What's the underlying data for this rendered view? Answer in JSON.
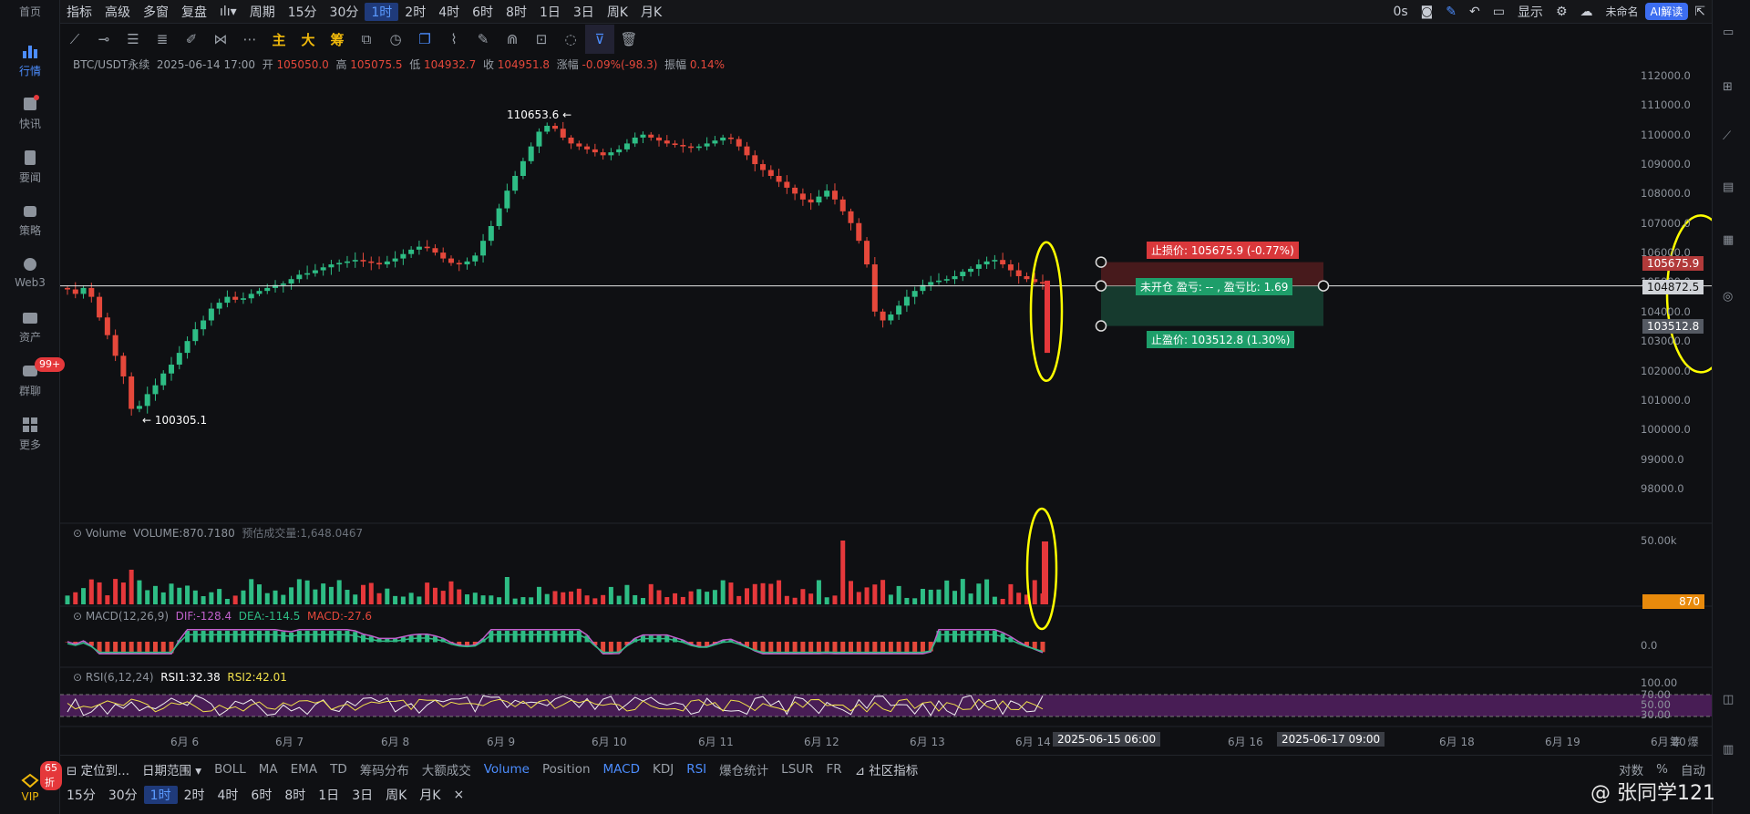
{
  "leftnav": {
    "items": [
      {
        "label": "首页"
      },
      {
        "label": "行情"
      },
      {
        "label": "快讯"
      },
      {
        "label": "要闻"
      },
      {
        "label": "策略"
      },
      {
        "label": "Web3"
      },
      {
        "label": "资产"
      },
      {
        "label": "群聊",
        "badge": "99+"
      },
      {
        "label": "更多"
      }
    ],
    "vip_label": "VIP",
    "vip_badge": "65折"
  },
  "topbar": {
    "items": [
      "指标",
      "高级",
      "多窗",
      "复盘",
      "周期",
      "15分",
      "30分",
      "1时",
      "2时",
      "4时",
      "6时",
      "8时",
      "1日",
      "3日",
      "周K",
      "月K"
    ],
    "selected": "1时",
    "right": {
      "zero_s": "0s",
      "display": "显示",
      "unnamed": "未命名",
      "ai": "AI解读"
    }
  },
  "drawbar": {
    "main": "主",
    "big": "大",
    "chip": "筹"
  },
  "info": {
    "symbol": "BTC/USDT永续",
    "datetime": "2025-06-14 17:00",
    "open_label": "开",
    "open": "105050.0",
    "high_label": "高",
    "high": "105075.5",
    "low_label": "低",
    "low": "104932.7",
    "close_label": "收",
    "close": "104951.8",
    "change_label": "涨幅",
    "change": "-0.09%(-98.3)",
    "amp_label": "振幅",
    "amp": "0.14%"
  },
  "volume": {
    "label": "Volume",
    "value": "VOLUME:870.7180",
    "estimate": "预估成交量:1,648.0467",
    "axis": "50.00k",
    "current": "870"
  },
  "macd": {
    "label": "MACD(12,26,9)",
    "dif": "DIF:-128.4",
    "dea": "DEA:-114.5",
    "macd": "MACD:-27.6",
    "axis": "0.0"
  },
  "rsi": {
    "label": "RSI(6,12,24)",
    "rsi1": "RSI1:32.38",
    "rsi2": "RSI2:42.01",
    "axis": [
      "100.00",
      "70.00",
      "50.00",
      "30.00"
    ]
  },
  "price_axis": [
    "112000.0",
    "111000.0",
    "110000.0",
    "109000.0",
    "108000.0",
    "107000.0",
    "106000.0",
    "105000.0",
    "104000.0",
    "103000.0",
    "102000.0",
    "101000.0",
    "100000.0",
    "99000.0",
    "98000.0"
  ],
  "price_tags": {
    "stop_loss": "105675.9",
    "current": "104872.5",
    "take_profit": "103512.8"
  },
  "annotations": {
    "high": "110653.6",
    "low": "← 100305.1",
    "stop_loss_label": "止损价: 105675.9 (-0.77%)",
    "position_label": "未开仓  盈亏: -- , 盈亏比: 1.69",
    "take_profit_label": "止盈价: 103512.8 (1.30%)"
  },
  "date_axis": [
    "6月 6",
    "6月 7",
    "6月 8",
    "6月 9",
    "6月 10",
    "6月 11",
    "6月 12",
    "6月 13",
    "6月 14",
    "6月 16",
    "6月 18",
    "6月 19",
    "6月 20"
  ],
  "date_highlights": [
    "2025-06-15 06:00",
    "2025-06-17 09:00"
  ],
  "axis_right_label": "筹  爆",
  "bottombar": {
    "locate": "定位到...",
    "range": "日期范围",
    "items": [
      "BOLL",
      "MA",
      "EMA",
      "TD",
      "筹码分布",
      "大额成交"
    ],
    "items2": [
      "Volume",
      "Position",
      "MACD",
      "KDJ",
      "RSI",
      "爆仓统计",
      "LSUR",
      "FR"
    ],
    "community": "社区指标",
    "right": [
      "对数",
      "%",
      "自动"
    ]
  },
  "tfbar": {
    "items": [
      "15分",
      "30分",
      "1时",
      "2时",
      "4时",
      "6时",
      "8时",
      "1日",
      "3日",
      "周K",
      "月K"
    ],
    "selected": "1时",
    "close": "×"
  },
  "watermark": "@ 张同学121",
  "chart_data": {
    "type": "candlestick",
    "symbol": "BTC/USDT永续",
    "interval": "1时",
    "price_range": [
      97500,
      112500
    ],
    "high": 110653.6,
    "low": 100305.1,
    "current": 104872.5,
    "stop_loss": 105675.9,
    "take_profit": 103512.8,
    "closes": [
      104750,
      104600,
      104800,
      104500,
      103800,
      103200,
      102500,
      101800,
      100700,
      100800,
      101200,
      101500,
      101900,
      102200,
      102600,
      103000,
      103400,
      103700,
      104100,
      104300,
      104500,
      104400,
      104450,
      104600,
      104700,
      104800,
      104900,
      104950,
      105100,
      105250,
      105300,
      105400,
      105500,
      105600,
      105650,
      105700,
      105750,
      105700,
      105650,
      105600,
      105700,
      105800,
      105950,
      106100,
      106200,
      106150,
      106000,
      105800,
      105650,
      105600,
      105700,
      105900,
      106400,
      106900,
      107500,
      108100,
      108600,
      109100,
      109600,
      110100,
      110300,
      110200,
      109900,
      109700,
      109600,
      109500,
      109400,
      109300,
      109400,
      109500,
      109700,
      109900,
      110000,
      109900,
      109800,
      109700,
      109650,
      109600,
      109550,
      109600,
      109700,
      109800,
      109900,
      109850,
      109600,
      109300,
      109000,
      108800,
      108600,
      108400,
      108200,
      108000,
      107800,
      107700,
      107900,
      108100,
      107800,
      107400,
      107000,
      106400,
      105600,
      104000,
      103700,
      103900,
      104200,
      104500,
      104700,
      104900,
      105000,
      105050,
      105100,
      105200,
      105350,
      105450,
      105600,
      105700,
      105750,
      105600,
      105400,
      105200,
      105100,
      105000,
      104950
    ]
  }
}
